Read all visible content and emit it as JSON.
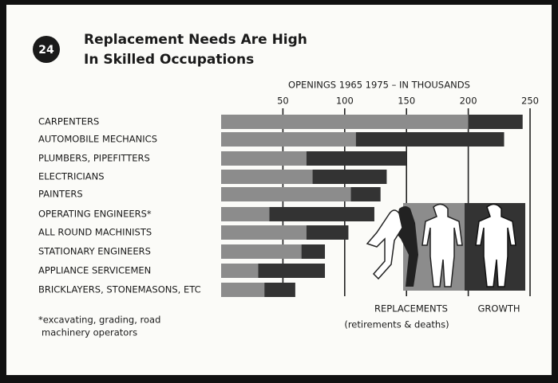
{
  "chart_data": {
    "type": "stacked-bar-horizontal",
    "badge": "24",
    "title": [
      "Replacement Needs Are High",
      "In Skilled Occupations"
    ],
    "axis_title": "OPENINGS 1965 1975 – IN THOUSANDS",
    "categories": [
      "CARPENTERS",
      "AUTOMOBILE MECHANICS",
      "PLUMBERS, PIPEFITTERS",
      "ELECTRICIANS",
      "PAINTERS",
      "OPERATING ENGINEERS*",
      "ALL ROUND MACHINISTS",
      "STATIONARY ENGINEERS",
      "APPLIANCE SERVICEMEN",
      "BRICKLAYERS, STONEMASONS, ETC"
    ],
    "series": [
      {
        "name": "REPLACEMENTS",
        "note": "(retirements & deaths)",
        "color": "#8c8c8c",
        "values": [
          200,
          109,
          69,
          74,
          105,
          39,
          69,
          65,
          30,
          35
        ]
      },
      {
        "name": "GROWTH",
        "color": "#333333",
        "values": [
          44,
          120,
          81,
          60,
          24,
          85,
          34,
          19,
          54,
          25
        ]
      }
    ],
    "xlim": [
      0,
      250
    ],
    "xticks": [
      50,
      100,
      150,
      200,
      250
    ],
    "grid": true,
    "footnote": [
      "*excavating, grading, road",
      "machinery operators"
    ]
  }
}
